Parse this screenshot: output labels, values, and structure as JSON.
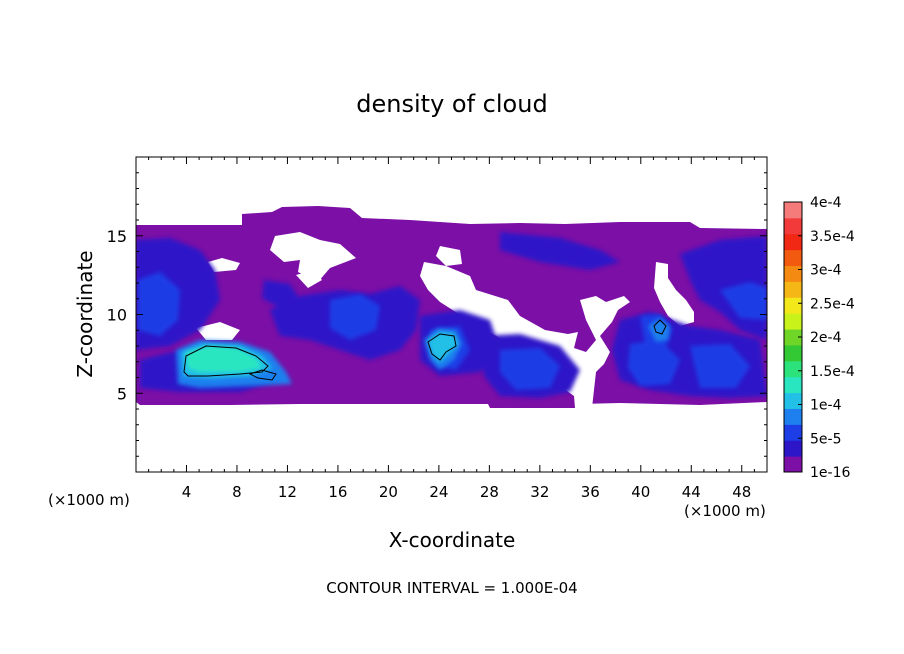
{
  "chart_data": {
    "type": "heatmap",
    "title": "density of cloud",
    "xlabel": "X-coordinate",
    "ylabel": "Z-coordinate",
    "x_unit": "(×1000 m)",
    "z_unit": "(×1000 m)",
    "xlim": [
      0,
      50
    ],
    "ylim": [
      0,
      20
    ],
    "x_ticks": [
      4,
      8,
      12,
      16,
      20,
      24,
      28,
      32,
      36,
      40,
      44,
      48
    ],
    "y_ticks": [
      5,
      10,
      15
    ],
    "footer": "CONTOUR INTERVAL = 1.000E-04",
    "colorbar": {
      "labels": [
        "1e-16",
        "5e-5",
        "1e-4",
        "1.5e-4",
        "2e-4",
        "2.5e-4",
        "3e-4",
        "3.5e-4",
        "4e-4"
      ],
      "colors": [
        "#7b0fa6",
        "#2d16c8",
        "#1d3ee6",
        "#1e7fee",
        "#22c0e6",
        "#29e6c0",
        "#2ce27a",
        "#33c935",
        "#6fd628",
        "#c9f21a",
        "#f2e81a",
        "#f5b716",
        "#f58a12",
        "#f25a10",
        "#f02814",
        "#f23a3a",
        "#f57a7a"
      ]
    },
    "cloud_field": {
      "z_range": [
        4.5,
        16.5
      ],
      "background_level": "1e-16",
      "regions": [
        {
          "x": 6.5,
          "z": 7.2,
          "level": "1.5e-4"
        },
        {
          "x": 24,
          "z": 8,
          "level": "1.5e-4"
        },
        {
          "x": 41,
          "z": 9,
          "level": "1e-4"
        },
        {
          "x": 2,
          "z": 11,
          "level": "5e-5"
        },
        {
          "x": 47,
          "z": 11.5,
          "level": "5e-5"
        },
        {
          "x": 18,
          "z": 10.5,
          "level": "5e-5"
        },
        {
          "x": 31,
          "z": 7,
          "level": "5e-5"
        },
        {
          "x": 45,
          "z": 6.5,
          "level": "5e-5"
        }
      ]
    }
  }
}
